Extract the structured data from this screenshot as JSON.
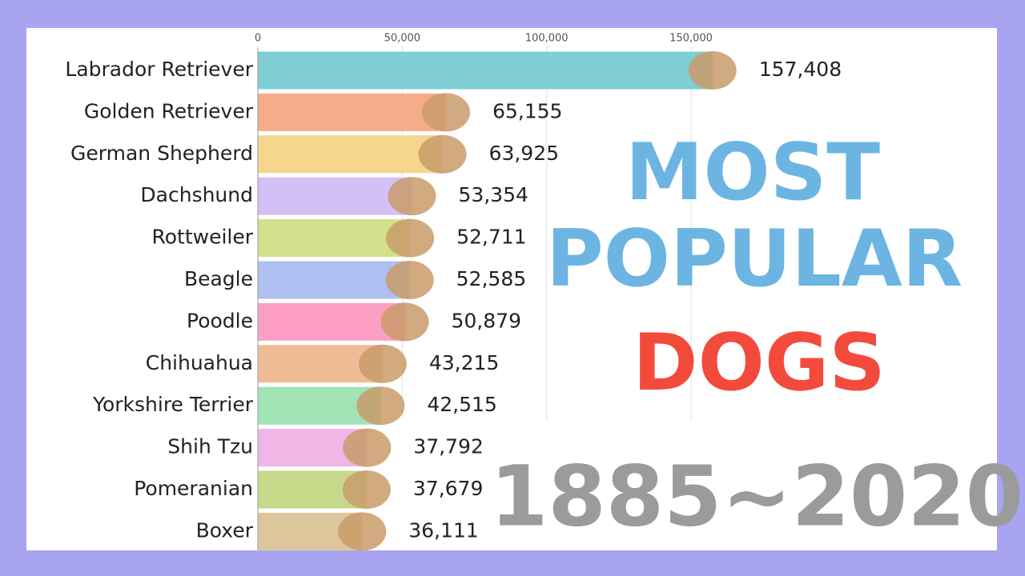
{
  "chart_data": {
    "type": "bar",
    "orientation": "horizontal",
    "title_lines": [
      "MOST",
      "POPULAR",
      "DOGS"
    ],
    "title_colors": [
      "#6cb5e3",
      "#6cb5e3",
      "#f24b3c"
    ],
    "subtitle": "1885~2020",
    "categories": [
      "Labrador Retriever",
      "Golden Retriever",
      "German Shepherd",
      "Dachshund",
      "Rottweiler",
      "Beagle",
      "Poodle",
      "Chihuahua",
      "Yorkshire Terrier",
      "Shih Tzu",
      "Pomeranian",
      "Boxer"
    ],
    "values": [
      157408,
      65155,
      63925,
      53354,
      52711,
      52585,
      50879,
      43215,
      42515,
      37792,
      37679,
      36111
    ],
    "value_labels": [
      "157,408",
      "65,155",
      "63,925",
      "53,354",
      "52,711",
      "52,585",
      "50,879",
      "43,215",
      "42,515",
      "37,792",
      "37,679",
      "36,111"
    ],
    "colors": [
      "#7fcfd5",
      "#f6ab8a",
      "#f6d68c",
      "#d3c0f5",
      "#d3e08c",
      "#aec1f2",
      "#fd9fc4",
      "#f0bc95",
      "#a1e3b5",
      "#efb6e6",
      "#c6d98b",
      "#ddc69c"
    ],
    "xlim": [
      0,
      180000
    ],
    "xticks": [
      0,
      {
        "value": 50000,
        "label": "50,000"
      },
      {
        "value": 100000,
        "label": "100,000"
      },
      {
        "value": 150000,
        "label": "150,000"
      }
    ],
    "grid": true
  }
}
